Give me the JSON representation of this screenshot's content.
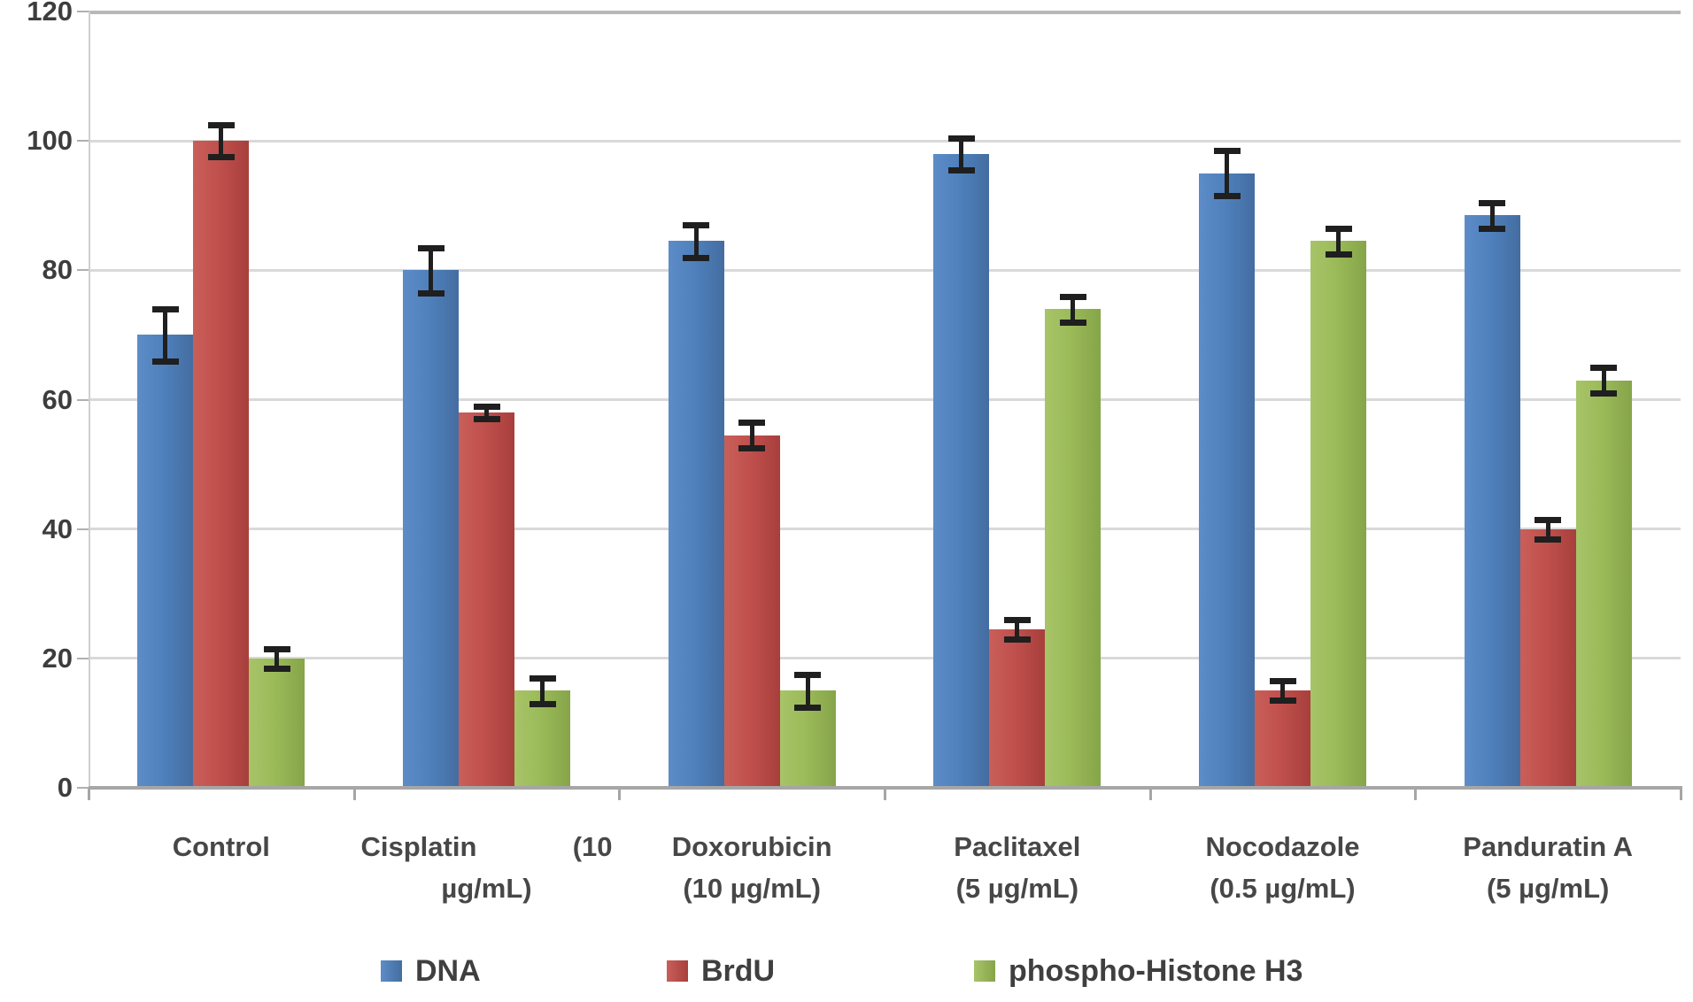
{
  "chart_data": {
    "type": "bar",
    "title": "",
    "xlabel": "",
    "ylabel": "",
    "ylim": [
      0,
      120
    ],
    "y_ticks": [
      0,
      20,
      40,
      60,
      80,
      100,
      120
    ],
    "grid": true,
    "legend_position": "bottom",
    "error_bar_color": "#1f1f1f",
    "gridline_color": "#d9d9d9",
    "axis_color": "#a6a6a6",
    "categories": [
      "Control",
      "Cisplatin (10 µg/mL)",
      "Doxorubicin (10 µg/mL)",
      "Paclitaxel (5 µg/mL)",
      "Nocodazole (0.5 µg/mL)",
      "Panduratin A (5 µg/mL)"
    ],
    "category_label_lines": [
      [
        [
          "Control"
        ]
      ],
      [
        [
          "Cisplatin",
          "(10"
        ],
        [
          "µg/mL)"
        ]
      ],
      [
        [
          "Doxorubicin"
        ],
        [
          "(10 µg/mL)"
        ]
      ],
      [
        [
          "Paclitaxel"
        ],
        [
          "(5 µg/mL)"
        ]
      ],
      [
        [
          "Nocodazole"
        ],
        [
          "(0.5 µg/mL)"
        ]
      ],
      [
        [
          "Panduratin A"
        ],
        [
          "(5 µg/mL)"
        ]
      ]
    ],
    "series": [
      {
        "name": "DNA",
        "color": "#4f81bd",
        "values": [
          70,
          80,
          84.5,
          98,
          95,
          88.5
        ],
        "errors": [
          4,
          3.5,
          2.5,
          2.5,
          3.5,
          2
        ]
      },
      {
        "name": "BrdU",
        "color": "#c0504d",
        "values": [
          100,
          58,
          54.5,
          24.5,
          15,
          40
        ],
        "errors": [
          2.5,
          1,
          2,
          1.5,
          1.5,
          1.5
        ]
      },
      {
        "name": "phospho-Histone H3",
        "color": "#9bbb59",
        "values": [
          20,
          15,
          15,
          74,
          84.5,
          63
        ],
        "errors": [
          1.5,
          2,
          2.5,
          2,
          2,
          2
        ]
      }
    ]
  }
}
